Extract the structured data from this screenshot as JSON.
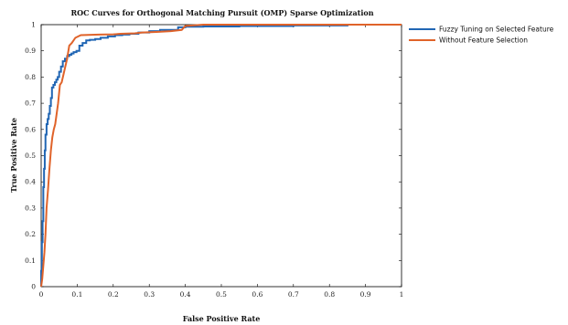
{
  "chart_data": {
    "type": "line",
    "title": "ROC Curves for Orthogonal Matching Pursuit (OMP) Sparse Optimization",
    "xlabel": "False Positive Rate",
    "ylabel": "True Positive Rate",
    "xlim": [
      0,
      1
    ],
    "ylim": [
      0,
      1
    ],
    "x_ticks": [
      "0",
      "0.1",
      "0.2",
      "0.3",
      "0.4",
      "0.5",
      "0.6",
      "0.7",
      "0.8",
      "0.9",
      "1"
    ],
    "y_ticks": [
      "0",
      "0.1",
      "0.2",
      "0.3",
      "0.4",
      "0.5",
      "0.6",
      "0.7",
      "0.8",
      "0.9",
      "1"
    ],
    "grid": false,
    "legend_position": "outside-top-right",
    "series": [
      {
        "name": "Fuzzy Tuning on Selected Feature",
        "color": "#2166b4",
        "x": [
          0,
          0,
          0.002,
          0.002,
          0.004,
          0.004,
          0.006,
          0.006,
          0.008,
          0.008,
          0.01,
          0.01,
          0.012,
          0.012,
          0.015,
          0.015,
          0.018,
          0.018,
          0.021,
          0.021,
          0.024,
          0.024,
          0.027,
          0.027,
          0.03,
          0.03,
          0.034,
          0.034,
          0.038,
          0.038,
          0.042,
          0.042,
          0.046,
          0.046,
          0.05,
          0.05,
          0.055,
          0.055,
          0.06,
          0.06,
          0.066,
          0.066,
          0.072,
          0.072,
          0.078,
          0.078,
          0.084,
          0.084,
          0.09,
          0.09,
          0.098,
          0.098,
          0.106,
          0.106,
          0.115,
          0.115,
          0.125,
          0.125,
          0.135,
          0.135,
          0.15,
          0.15,
          0.165,
          0.165,
          0.185,
          0.185,
          0.205,
          0.205,
          0.225,
          0.225,
          0.245,
          0.245,
          0.27,
          0.27,
          0.3,
          0.3,
          0.33,
          0.33,
          0.38,
          0.38,
          0.4,
          0.4,
          0.45,
          0.45,
          0.55,
          0.55,
          0.7,
          0.7,
          0.85,
          0.85,
          1.0
        ],
        "y": [
          0,
          0.06,
          0.06,
          0.17,
          0.17,
          0.25,
          0.25,
          0.38,
          0.38,
          0.45,
          0.45,
          0.52,
          0.52,
          0.58,
          0.58,
          0.62,
          0.62,
          0.64,
          0.64,
          0.66,
          0.66,
          0.69,
          0.69,
          0.72,
          0.72,
          0.76,
          0.76,
          0.77,
          0.77,
          0.78,
          0.78,
          0.79,
          0.79,
          0.8,
          0.8,
          0.82,
          0.82,
          0.84,
          0.84,
          0.86,
          0.86,
          0.87,
          0.87,
          0.88,
          0.88,
          0.885,
          0.885,
          0.89,
          0.89,
          0.895,
          0.895,
          0.9,
          0.9,
          0.92,
          0.92,
          0.93,
          0.93,
          0.94,
          0.94,
          0.942,
          0.942,
          0.945,
          0.945,
          0.95,
          0.95,
          0.955,
          0.955,
          0.96,
          0.96,
          0.962,
          0.962,
          0.965,
          0.965,
          0.97,
          0.97,
          0.975,
          0.975,
          0.98,
          0.98,
          0.99,
          0.99,
          0.992,
          0.992,
          0.993,
          0.993,
          0.995,
          0.995,
          0.997,
          0.997,
          1.0,
          1.0
        ]
      },
      {
        "name": "Without Feature Selection",
        "color": "#e0632a",
        "x": [
          0,
          0.003,
          0.003,
          0.006,
          0.006,
          0.009,
          0.009,
          0.012,
          0.012,
          0.015,
          0.015,
          0.019,
          0.019,
          0.023,
          0.023,
          0.027,
          0.027,
          0.031,
          0.031,
          0.035,
          0.035,
          0.039,
          0.039,
          0.043,
          0.043,
          0.047,
          0.047,
          0.052,
          0.052,
          0.057,
          0.057,
          0.062,
          0.062,
          0.067,
          0.067,
          0.072,
          0.072,
          0.078,
          0.078,
          0.085,
          0.085,
          0.095,
          0.095,
          0.11,
          0.11,
          0.16,
          0.16,
          0.2,
          0.2,
          0.22,
          0.22,
          0.26,
          0.26,
          0.28,
          0.28,
          0.32,
          0.32,
          0.36,
          0.36,
          0.39,
          0.39,
          0.4,
          0.4,
          0.45,
          0.45,
          0.6,
          0.6,
          0.8,
          0.8,
          0.95,
          0.95,
          1.0
        ],
        "y": [
          0,
          0.03,
          0.03,
          0.08,
          0.08,
          0.13,
          0.13,
          0.2,
          0.2,
          0.3,
          0.3,
          0.37,
          0.37,
          0.45,
          0.45,
          0.52,
          0.52,
          0.57,
          0.57,
          0.6,
          0.6,
          0.62,
          0.62,
          0.66,
          0.66,
          0.7,
          0.7,
          0.77,
          0.77,
          0.78,
          0.78,
          0.81,
          0.81,
          0.84,
          0.84,
          0.87,
          0.87,
          0.92,
          0.92,
          0.93,
          0.93,
          0.95,
          0.95,
          0.96,
          0.96,
          0.962,
          0.962,
          0.963,
          0.963,
          0.965,
          0.965,
          0.967,
          0.967,
          0.97,
          0.97,
          0.972,
          0.972,
          0.975,
          0.975,
          0.98,
          0.98,
          0.995,
          0.995,
          1.0,
          1.0,
          1.0,
          1.0,
          1.0,
          1.0,
          1.0,
          1.0,
          1.0
        ]
      }
    ]
  }
}
